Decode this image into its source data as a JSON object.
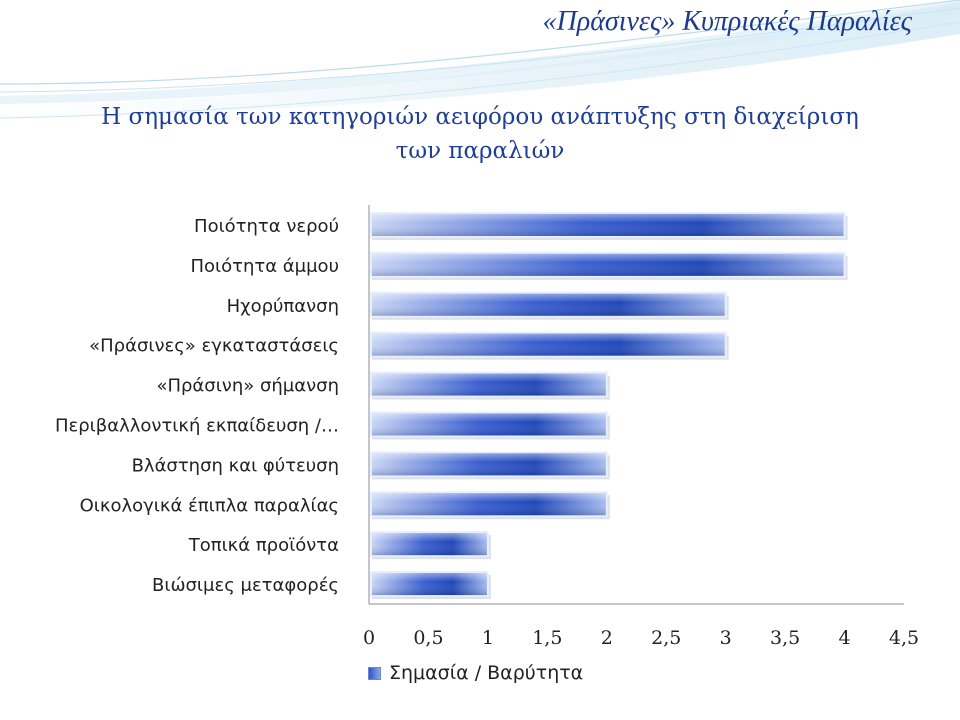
{
  "slide": {
    "title": "«Πράσινες» Κυπριακές Παραλίες"
  },
  "chart_data": {
    "type": "bar",
    "orientation": "horizontal",
    "title_lines": [
      "Η σημασία των κατηγοριών αειφόρου ανάπτυξης στη διαχείριση",
      "των παραλιών"
    ],
    "categories": [
      "Ποιότητα νερού",
      "Ποιότητα άμμου",
      "Ηχορύπανση",
      "«Πράσινες» εγκαταστάσεις",
      "«Πράσινη» σήμανση",
      "Περιβαλλοντική εκπαίδευση /…",
      "Βλάστηση και φύτευση",
      "Οικολογικά έπιπλα παραλίας",
      "Τοπικά προϊόντα",
      "Βιώσιμες μεταφορές"
    ],
    "series": [
      {
        "name": "Σημασία / Βαρύτητα",
        "values": [
          4,
          4,
          3,
          3,
          2,
          2,
          2,
          2,
          1,
          1
        ]
      }
    ],
    "xlim": [
      0,
      4.5
    ],
    "x_ticks": [
      "0",
      "0,5",
      "1",
      "1,5",
      "2",
      "2,5",
      "3",
      "3,5",
      "4",
      "4,5"
    ],
    "grid": false,
    "legend_position": "bottom",
    "bar_color": "#2e55c4"
  }
}
